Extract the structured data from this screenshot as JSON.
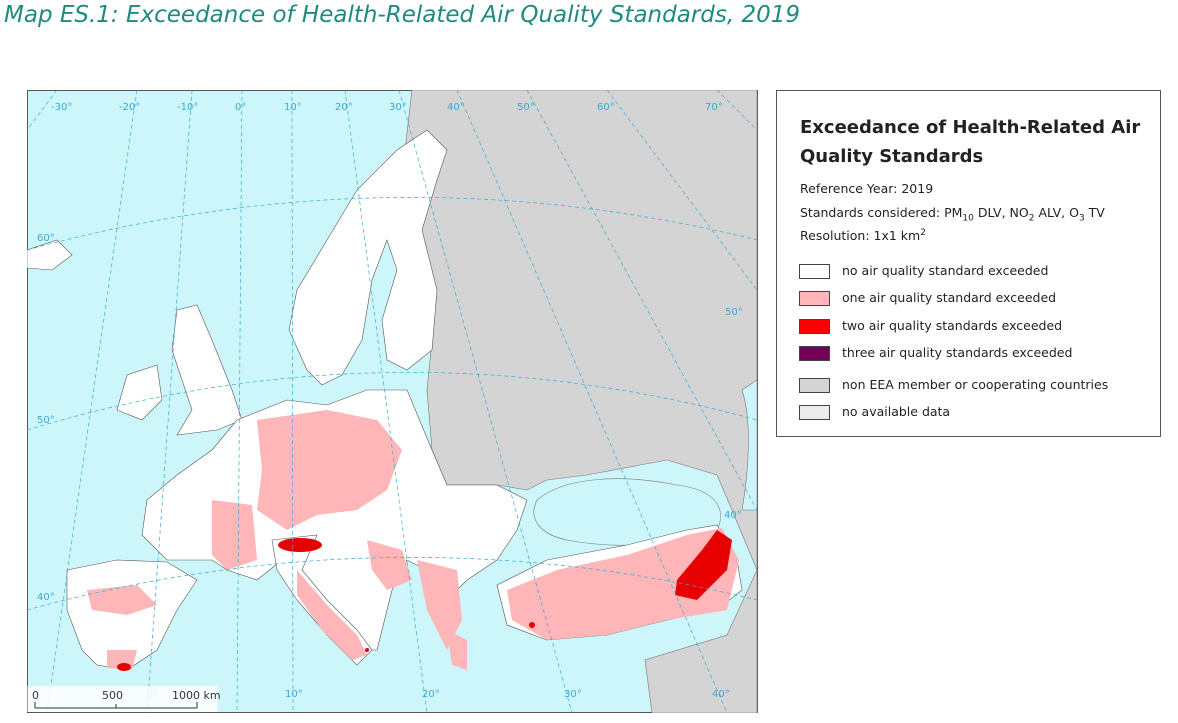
{
  "title": "Map ES.1:  Exceedance of Health-Related Air Quality Standards, 2019",
  "map": {
    "graticule_labels": [
      "-30°",
      "-20°",
      "-10°",
      "0°",
      "10°",
      "20°",
      "30°",
      "40°",
      "50°",
      "60°",
      "70°",
      "60°",
      "50°",
      "40°",
      "50°",
      "40°",
      "0°",
      "10°",
      "20°",
      "30°",
      "40°"
    ],
    "scale_bar": [
      "0",
      "500",
      "1000 km"
    ]
  },
  "legend": {
    "title": "Exceedance of Health-Related Air Quality Standards",
    "reference_year": "Reference Year: 2019",
    "standards": [
      "Standards considered: PM",
      "10",
      " DLV, NO",
      "2",
      " ALV, O",
      "3",
      " TV"
    ],
    "resolution": [
      "Resolution: 1x1 km",
      "2"
    ],
    "items": [
      {
        "label": "no air quality standard exceeded",
        "color": "#ffffff"
      },
      {
        "label": "one air quality standard exceeded",
        "color": "#ffb6b9"
      },
      {
        "label": "two air quality standards exceeded",
        "color": "#ff0000"
      },
      {
        "label": "three air quality standards exceeded",
        "color": "#730052"
      },
      {
        "label": "non EEA member or cooperating countries",
        "color": "#d4d4d4"
      },
      {
        "label": "no available data",
        "color": "#ececec"
      }
    ]
  }
}
